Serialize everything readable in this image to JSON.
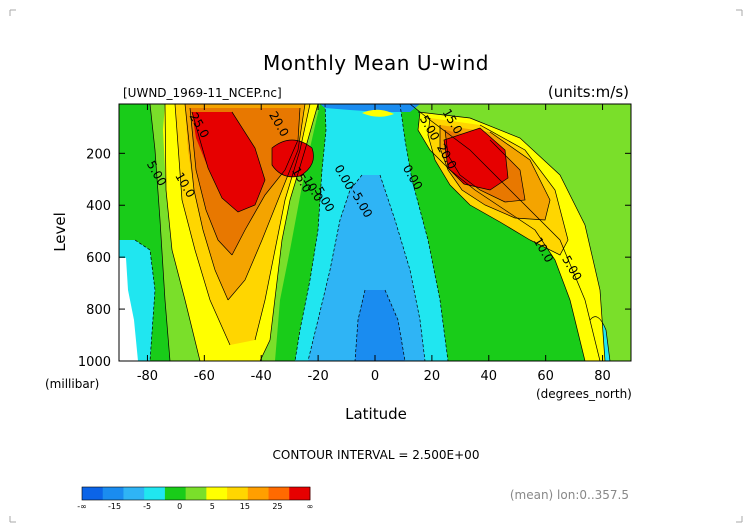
{
  "chart_data": {
    "type": "contour",
    "title": "Monthly Mean U-wind",
    "file_label": "[UWND_1969-11_NCEP.nc]",
    "units_label": "(units:m/s)",
    "xlabel": "Latitude",
    "x_units": "(degrees_north)",
    "ylabel": "Level",
    "y_units": "(millibar)",
    "xlim": [
      -90,
      90
    ],
    "ylim": [
      1000,
      10
    ],
    "x_ticks": [
      "-80",
      "-60",
      "-40",
      "-20",
      "0",
      "20",
      "40",
      "60",
      "80"
    ],
    "x_tick_values": [
      -80,
      -60,
      -40,
      -20,
      0,
      20,
      40,
      60,
      80
    ],
    "y_ticks": [
      "200",
      "400",
      "600",
      "800",
      "1000"
    ],
    "y_tick_values": [
      200,
      400,
      600,
      800,
      1000
    ],
    "contour_interval_text": "CONTOUR INTERVAL = 2.500E+00",
    "footer_note": "(mean) lon:0..357.5",
    "contour_labels": [
      {
        "text": "25.0",
        "lat": -63,
        "lev": 100
      },
      {
        "text": "20.0",
        "lat": -35,
        "lev": 95
      },
      {
        "text": "5.00",
        "lat": -78,
        "lev": 285
      },
      {
        "text": "10.0",
        "lat": -68,
        "lev": 330
      },
      {
        "text": "15.0",
        "lat": -27,
        "lev": 310
      },
      {
        "text": "10.0",
        "lat": -23,
        "lev": 345
      },
      {
        "text": "5.00",
        "lat": -19,
        "lev": 385
      },
      {
        "text": "0.00",
        "lat": -12,
        "lev": 300
      },
      {
        "text": "-5.00",
        "lat": -6,
        "lev": 400
      },
      {
        "text": "0.00",
        "lat": 12,
        "lev": 300
      },
      {
        "text": "5.00",
        "lat": 18,
        "lev": 110
      },
      {
        "text": "15.0",
        "lat": 26,
        "lev": 85
      },
      {
        "text": "20.0",
        "lat": 24,
        "lev": 220
      },
      {
        "text": "10.0",
        "lat": 58,
        "lev": 580
      },
      {
        "text": "5.00",
        "lat": 68,
        "lev": 650
      }
    ],
    "colorbar": {
      "labels": [
        "-∞",
        "-15",
        "-5",
        "0",
        "5",
        "15",
        "25",
        "∞"
      ],
      "colors": [
        "#0b64e8",
        "#1a8cf0",
        "#2fb4f5",
        "#20e6f0",
        "#19cc19",
        "#7adf2a",
        "#ffff00",
        "#ffd600",
        "#ff9f00",
        "#ff6a00",
        "#e60000"
      ]
    },
    "bands": {
      "neg15": "#0b64e8",
      "neg10": "#1a8cf0",
      "neg5": "#2fb4f5",
      "neg2": "#20e6f0",
      "zero": "#19cc19",
      "p2": "#7adf2a",
      "p5": "#ffff00",
      "p10": "#ffd600",
      "p15": "#f4a400",
      "p20": "#e87800",
      "p25": "#e60000"
    }
  }
}
